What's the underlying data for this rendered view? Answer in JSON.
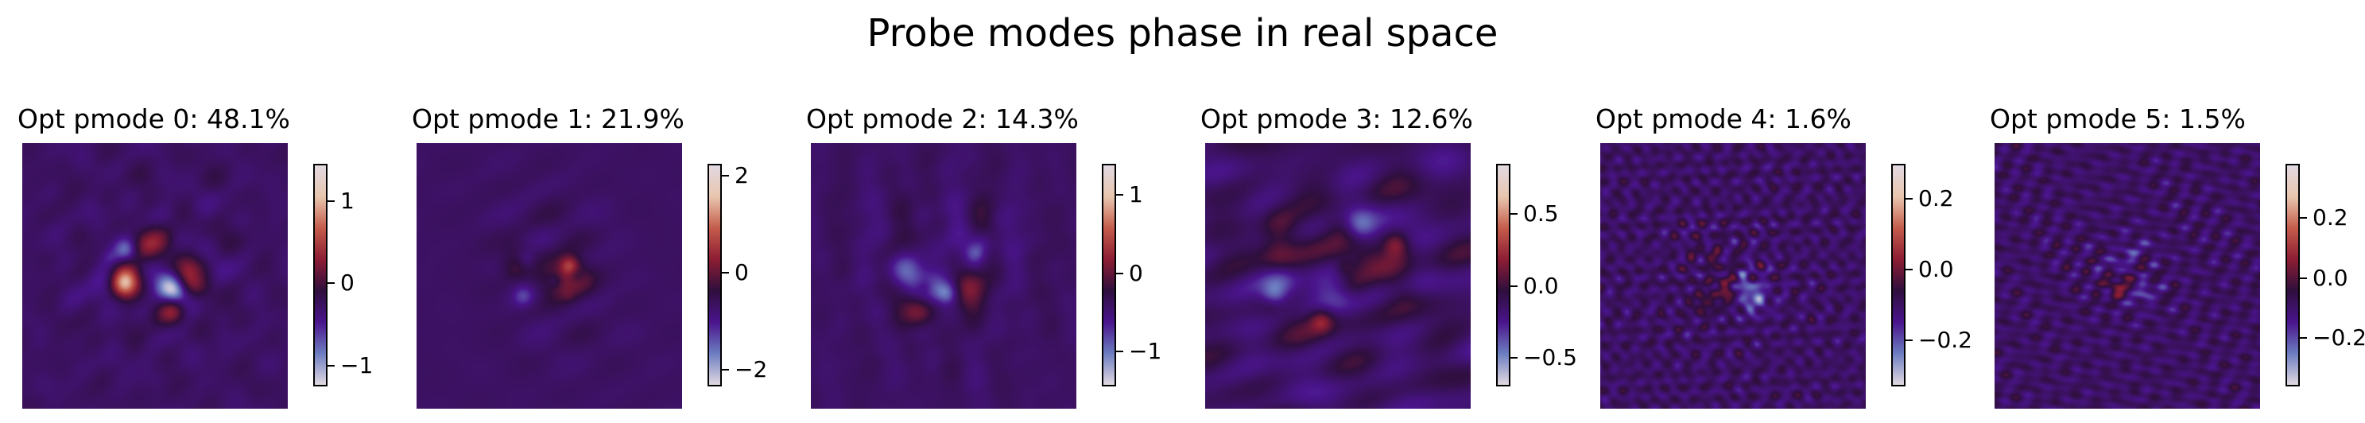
{
  "figure": {
    "suptitle": "Probe modes phase in real space"
  },
  "colors": {
    "cmap_stops": [
      "#e2d9e2",
      "#6c7dc0",
      "#4a148c",
      "#2f0f3d",
      "#8c1d34",
      "#c45c4b",
      "#e8c6ae",
      "#e2d9e2"
    ],
    "background_phase": "#3b1a5a"
  },
  "chart_data": [
    {
      "type": "heatmap",
      "title": "Opt pmode 0: 48.1%",
      "colorbar_range": [
        -1.25,
        1.45
      ],
      "colorbar_ticks": [
        -1,
        0,
        1
      ],
      "colorbar_tick_labels": [
        "−1",
        "0",
        "1"
      ],
      "colormap": "twilight_shifted"
    },
    {
      "type": "heatmap",
      "title": "Opt pmode 1: 21.9%",
      "colorbar_range": [
        -2.35,
        2.25
      ],
      "colorbar_ticks": [
        -2,
        0,
        2
      ],
      "colorbar_tick_labels": [
        "−2",
        "0",
        "2"
      ],
      "colormap": "twilight_shifted"
    },
    {
      "type": "heatmap",
      "title": "Opt pmode 2: 14.3%",
      "colorbar_range": [
        -1.45,
        1.4
      ],
      "colorbar_ticks": [
        -1,
        0,
        1
      ],
      "colorbar_tick_labels": [
        "−1",
        "0",
        "1"
      ],
      "colormap": "twilight_shifted"
    },
    {
      "type": "heatmap",
      "title": "Opt pmode 3: 12.6%",
      "colorbar_range": [
        -0.7,
        0.85
      ],
      "colorbar_ticks": [
        -0.5,
        0.0,
        0.5
      ],
      "colorbar_tick_labels": [
        "−0.5",
        "0.0",
        "0.5"
      ],
      "colormap": "twilight_shifted"
    },
    {
      "type": "heatmap",
      "title": "Opt pmode 4: 1.6%",
      "colorbar_range": [
        -0.33,
        0.3
      ],
      "colorbar_ticks": [
        -0.2,
        0.0,
        0.2
      ],
      "colorbar_tick_labels": [
        "−0.2",
        "0.0",
        "0.2"
      ],
      "colormap": "twilight_shifted"
    },
    {
      "type": "heatmap",
      "title": "Opt pmode 5: 1.5%",
      "colorbar_range": [
        -0.36,
        0.38
      ],
      "colorbar_ticks": [
        -0.2,
        0.0,
        0.2
      ],
      "colorbar_tick_labels": [
        "−0.2",
        "0.0",
        "0.2"
      ],
      "colormap": "twilight_shifted"
    }
  ]
}
